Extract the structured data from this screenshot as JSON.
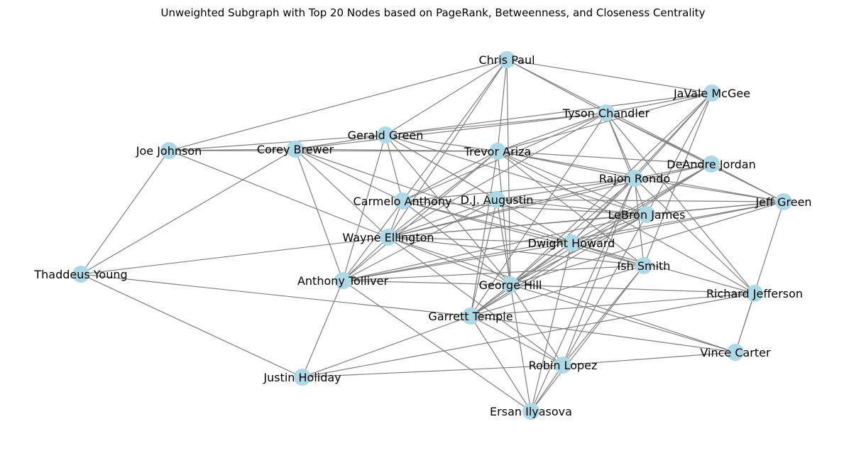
{
  "title": "Unweighted Subgraph with Top 20 Nodes based on PageRank, Betweenness, and Closeness Centrality",
  "style": {
    "node_color": "#add8e6",
    "edge_color": "#808080",
    "text_color": "#000000"
  },
  "nodes": [
    {
      "id": "chris_paul",
      "label": "Chris Paul"
    },
    {
      "id": "javale_mcgee",
      "label": "JaVale McGee"
    },
    {
      "id": "tyson_chandler",
      "label": "Tyson Chandler"
    },
    {
      "id": "gerald_green",
      "label": "Gerald Green"
    },
    {
      "id": "joe_johnson",
      "label": "Joe Johnson"
    },
    {
      "id": "corey_brewer",
      "label": "Corey Brewer"
    },
    {
      "id": "trevor_ariza",
      "label": "Trevor Ariza"
    },
    {
      "id": "deandre_jordan",
      "label": "DeAndre Jordan"
    },
    {
      "id": "rajon_rondo",
      "label": "Rajon Rondo"
    },
    {
      "id": "carmelo_anthony",
      "label": "Carmelo Anthony"
    },
    {
      "id": "dj_augustin",
      "label": "D.J. Augustin"
    },
    {
      "id": "jeff_green",
      "label": "Jeff Green"
    },
    {
      "id": "lebron_james",
      "label": "LeBron James"
    },
    {
      "id": "wayne_ellington",
      "label": "Wayne Ellington"
    },
    {
      "id": "dwight_howard",
      "label": "Dwight Howard"
    },
    {
      "id": "thaddeus_young",
      "label": "Thaddeus Young"
    },
    {
      "id": "ish_smith",
      "label": "Ish Smith"
    },
    {
      "id": "anthony_tolliver",
      "label": "Anthony Tolliver"
    },
    {
      "id": "george_hill",
      "label": "George Hill"
    },
    {
      "id": "richard_jefferson",
      "label": "Richard Jefferson"
    },
    {
      "id": "garrett_temple",
      "label": "Garrett Temple"
    },
    {
      "id": "vince_carter",
      "label": "Vince Carter"
    },
    {
      "id": "robin_lopez",
      "label": "Robin Lopez"
    },
    {
      "id": "justin_holiday",
      "label": "Justin Holiday"
    },
    {
      "id": "ersan_ilyasova",
      "label": "Ersan Ilyasova"
    }
  ],
  "edges": [
    [
      "chris_paul",
      "joe_johnson"
    ],
    [
      "chris_paul",
      "gerald_green"
    ],
    [
      "chris_paul",
      "trevor_ariza"
    ],
    [
      "chris_paul",
      "tyson_chandler"
    ],
    [
      "chris_paul",
      "javale_mcgee"
    ],
    [
      "chris_paul",
      "deandre_jordan"
    ],
    [
      "chris_paul",
      "carmelo_anthony"
    ],
    [
      "chris_paul",
      "george_hill"
    ],
    [
      "chris_paul",
      "wayne_ellington"
    ],
    [
      "javale_mcgee",
      "tyson_chandler"
    ],
    [
      "javale_mcgee",
      "trevor_ariza"
    ],
    [
      "javale_mcgee",
      "rajon_rondo"
    ],
    [
      "javale_mcgee",
      "lebron_james"
    ],
    [
      "javale_mcgee",
      "ish_smith"
    ],
    [
      "javale_mcgee",
      "george_hill"
    ],
    [
      "javale_mcgee",
      "dwight_howard"
    ],
    [
      "javale_mcgee",
      "gerald_green"
    ],
    [
      "tyson_chandler",
      "gerald_green"
    ],
    [
      "tyson_chandler",
      "corey_brewer"
    ],
    [
      "tyson_chandler",
      "deandre_jordan"
    ],
    [
      "tyson_chandler",
      "rajon_rondo"
    ],
    [
      "tyson_chandler",
      "jeff_green"
    ],
    [
      "tyson_chandler",
      "lebron_james"
    ],
    [
      "tyson_chandler",
      "carmelo_anthony"
    ],
    [
      "tyson_chandler",
      "wayne_ellington"
    ],
    [
      "tyson_chandler",
      "trevor_ariza"
    ],
    [
      "tyson_chandler",
      "garrett_temple"
    ],
    [
      "tyson_chandler",
      "richard_jefferson"
    ],
    [
      "gerald_green",
      "joe_johnson"
    ],
    [
      "gerald_green",
      "corey_brewer"
    ],
    [
      "gerald_green",
      "trevor_ariza"
    ],
    [
      "gerald_green",
      "carmelo_anthony"
    ],
    [
      "gerald_green",
      "dj_augustin"
    ],
    [
      "gerald_green",
      "anthony_tolliver"
    ],
    [
      "gerald_green",
      "dwight_howard"
    ],
    [
      "gerald_green",
      "lebron_james"
    ],
    [
      "gerald_green",
      "george_hill"
    ],
    [
      "joe_johnson",
      "corey_brewer"
    ],
    [
      "joe_johnson",
      "thaddeus_young"
    ],
    [
      "joe_johnson",
      "wayne_ellington"
    ],
    [
      "joe_johnson",
      "trevor_ariza"
    ],
    [
      "corey_brewer",
      "trevor_ariza"
    ],
    [
      "corey_brewer",
      "thaddeus_young"
    ],
    [
      "corey_brewer",
      "wayne_ellington"
    ],
    [
      "corey_brewer",
      "anthony_tolliver"
    ],
    [
      "corey_brewer",
      "dwight_howard"
    ],
    [
      "corey_brewer",
      "carmelo_anthony"
    ],
    [
      "trevor_ariza",
      "deandre_jordan"
    ],
    [
      "trevor_ariza",
      "rajon_rondo"
    ],
    [
      "trevor_ariza",
      "jeff_green"
    ],
    [
      "trevor_ariza",
      "lebron_james"
    ],
    [
      "trevor_ariza",
      "carmelo_anthony"
    ],
    [
      "trevor_ariza",
      "wayne_ellington"
    ],
    [
      "trevor_ariza",
      "garrett_temple"
    ],
    [
      "trevor_ariza",
      "george_hill"
    ],
    [
      "trevor_ariza",
      "richard_jefferson"
    ],
    [
      "trevor_ariza",
      "anthony_tolliver"
    ],
    [
      "trevor_ariza",
      "ish_smith"
    ],
    [
      "deandre_jordan",
      "rajon_rondo"
    ],
    [
      "deandre_jordan",
      "jeff_green"
    ],
    [
      "deandre_jordan",
      "dwight_howard"
    ],
    [
      "deandre_jordan",
      "george_hill"
    ],
    [
      "deandre_jordan",
      "wayne_ellington"
    ],
    [
      "deandre_jordan",
      "garrett_temple"
    ],
    [
      "rajon_rondo",
      "carmelo_anthony"
    ],
    [
      "rajon_rondo",
      "dj_augustin"
    ],
    [
      "rajon_rondo",
      "wayne_ellington"
    ],
    [
      "rajon_rondo",
      "dwight_howard"
    ],
    [
      "rajon_rondo",
      "george_hill"
    ],
    [
      "rajon_rondo",
      "ish_smith"
    ],
    [
      "rajon_rondo",
      "jeff_green"
    ],
    [
      "rajon_rondo",
      "richard_jefferson"
    ],
    [
      "rajon_rondo",
      "robin_lopez"
    ],
    [
      "rajon_rondo",
      "ersan_ilyasova"
    ],
    [
      "carmelo_anthony",
      "lebron_james"
    ],
    [
      "carmelo_anthony",
      "wayne_ellington"
    ],
    [
      "carmelo_anthony",
      "dwight_howard"
    ],
    [
      "carmelo_anthony",
      "george_hill"
    ],
    [
      "carmelo_anthony",
      "anthony_tolliver"
    ],
    [
      "carmelo_anthony",
      "ish_smith"
    ],
    [
      "dj_augustin",
      "jeff_green"
    ],
    [
      "dj_augustin",
      "wayne_ellington"
    ],
    [
      "dj_augustin",
      "garrett_temple"
    ],
    [
      "dj_augustin",
      "george_hill"
    ],
    [
      "dj_augustin",
      "lebron_james"
    ],
    [
      "dj_augustin",
      "anthony_tolliver"
    ],
    [
      "jeff_green",
      "wayne_ellington"
    ],
    [
      "jeff_green",
      "lebron_james"
    ],
    [
      "jeff_green",
      "george_hill"
    ],
    [
      "jeff_green",
      "vince_carter"
    ],
    [
      "jeff_green",
      "anthony_tolliver"
    ],
    [
      "jeff_green",
      "dwight_howard"
    ],
    [
      "lebron_james",
      "wayne_ellington"
    ],
    [
      "lebron_james",
      "george_hill"
    ],
    [
      "lebron_james",
      "garrett_temple"
    ],
    [
      "lebron_james",
      "dwight_howard"
    ],
    [
      "lebron_james",
      "robin_lopez"
    ],
    [
      "lebron_james",
      "anthony_tolliver"
    ],
    [
      "wayne_ellington",
      "thaddeus_young"
    ],
    [
      "wayne_ellington",
      "anthony_tolliver"
    ],
    [
      "wayne_ellington",
      "dwight_howard"
    ],
    [
      "wayne_ellington",
      "ish_smith"
    ],
    [
      "wayne_ellington",
      "george_hill"
    ],
    [
      "wayne_ellington",
      "robin_lopez"
    ],
    [
      "wayne_ellington",
      "vince_carter"
    ],
    [
      "dwight_howard",
      "george_hill"
    ],
    [
      "dwight_howard",
      "garrett_temple"
    ],
    [
      "dwight_howard",
      "ish_smith"
    ],
    [
      "dwight_howard",
      "ersan_ilyasova"
    ],
    [
      "dwight_howard",
      "anthony_tolliver"
    ],
    [
      "dwight_howard",
      "richard_jefferson"
    ],
    [
      "thaddeus_young",
      "garrett_temple"
    ],
    [
      "thaddeus_young",
      "justin_holiday"
    ],
    [
      "ish_smith",
      "anthony_tolliver"
    ],
    [
      "ish_smith",
      "garrett_temple"
    ],
    [
      "ish_smith",
      "robin_lopez"
    ],
    [
      "ish_smith",
      "ersan_ilyasova"
    ],
    [
      "anthony_tolliver",
      "george_hill"
    ],
    [
      "anthony_tolliver",
      "justin_holiday"
    ],
    [
      "anthony_tolliver",
      "ersan_ilyasova"
    ],
    [
      "george_hill",
      "richard_jefferson"
    ],
    [
      "george_hill",
      "vince_carter"
    ],
    [
      "george_hill",
      "robin_lopez"
    ],
    [
      "george_hill",
      "ersan_ilyasova"
    ],
    [
      "george_hill",
      "garrett_temple"
    ],
    [
      "richard_jefferson",
      "garrett_temple"
    ],
    [
      "richard_jefferson",
      "vince_carter"
    ],
    [
      "richard_jefferson",
      "justin_holiday"
    ],
    [
      "garrett_temple",
      "justin_holiday"
    ],
    [
      "garrett_temple",
      "vince_carter"
    ],
    [
      "garrett_temple",
      "ersan_ilyasova"
    ],
    [
      "garrett_temple",
      "robin_lopez"
    ],
    [
      "vince_carter",
      "robin_lopez"
    ],
    [
      "robin_lopez",
      "justin_holiday"
    ],
    [
      "robin_lopez",
      "ersan_ilyasova"
    ]
  ]
}
